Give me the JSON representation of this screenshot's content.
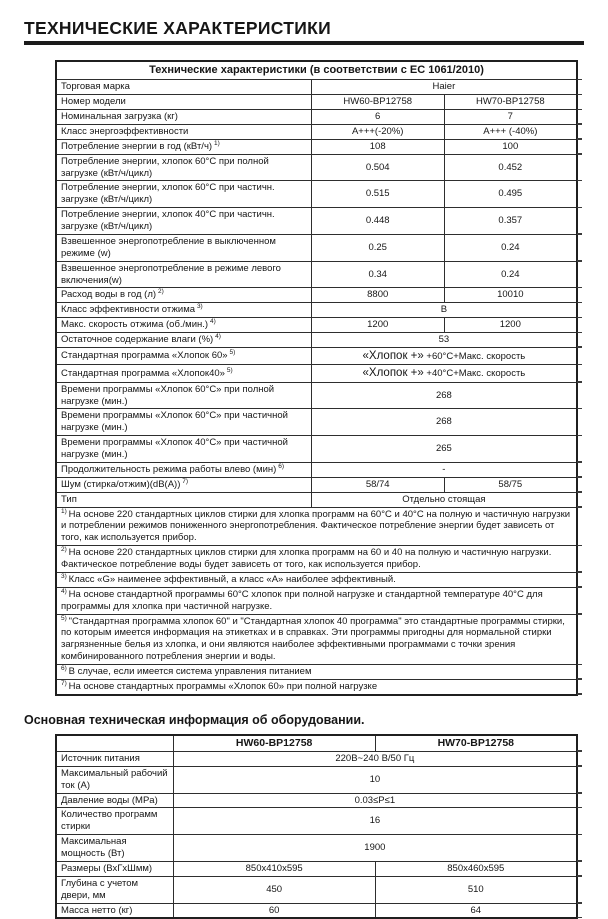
{
  "page": {
    "title": "ТЕХНИЧЕСКИЕ ХАРАКТЕРИСТИКИ",
    "section2_title": "Основная техническая информация об оборудовании."
  },
  "spec_table": {
    "title": "Технические характеристики (в соответствии с ЕС 1061/2010)",
    "rows": [
      {
        "label": "Торговая марка",
        "values": [
          "Haier"
        ]
      },
      {
        "label": "Номер модели",
        "values": [
          "HW60-BP12758",
          "HW70-BP12758"
        ]
      },
      {
        "label": "Номинальная загрузка (кг)",
        "values": [
          "6",
          "7"
        ]
      },
      {
        "label": "Класс энергоэффективности",
        "values": [
          "A+++(-20%)",
          "A+++ (-40%)"
        ]
      },
      {
        "label": "Потребление энергии в год (кВт/ч)",
        "sup": "1)",
        "values": [
          "108",
          "100"
        ]
      },
      {
        "label": "Потребление энергии, хлопок 60°C при полной загрузке (кВт/ч/цикл)",
        "values": [
          "0.504",
          "0.452"
        ]
      },
      {
        "label": "Потребление энергии, хлопок 60°C при частичн. загрузке (кВт/ч/цикл)",
        "values": [
          "0.515",
          "0.495"
        ]
      },
      {
        "label": "Потребление энергии, хлопок 40°C при частичн. загрузке (кВт/ч/цикл)",
        "values": [
          "0.448",
          "0.357"
        ]
      },
      {
        "label": "Взвешенное энергопотребление в выключенном режиме (w)",
        "values": [
          "0.25",
          "0.24"
        ]
      },
      {
        "label": "Взвешенное энергопотребление в режиме левого включения(w)",
        "values": [
          "0.34",
          "0.24"
        ]
      },
      {
        "label": "Расход воды в год (л)",
        "sup": "2)",
        "values": [
          "8800",
          "10010"
        ]
      },
      {
        "label": "Класс эффективности отжима",
        "sup": "3)",
        "values": [
          "В"
        ]
      },
      {
        "label": "Макс. скорость отжима (об./мин.)",
        "sup": "4)",
        "values": [
          "1200",
          "1200"
        ]
      },
      {
        "label": "Остаточное содержание влаги (%)",
        "sup": "4)",
        "values": [
          "53"
        ]
      },
      {
        "label": "Стандартная программа «Хлопок 60»",
        "sup": "5)",
        "value_big": "«Хлопок +»",
        "values": [
          "+60°C+Макс. скорость"
        ]
      },
      {
        "label": "Стандартная программа «Хлопок40»",
        "sup": "5)",
        "value_big": "«Хлопок +»",
        "values": [
          "+40°C+Макс. скорость"
        ]
      },
      {
        "label": "Времени программы «Хлопок 60°C» при полной нагрузке (мин.)",
        "values": [
          "268"
        ]
      },
      {
        "label": "Времени программы «Хлопок 60°C» при частичной нагрузке (мин.)",
        "values": [
          "268"
        ]
      },
      {
        "label": "Времени программы «Хлопок 40°C» при частичной нагрузке (мин.)",
        "values": [
          "265"
        ]
      },
      {
        "label": "Продолжительность режима работы влево (мин)",
        "sup": "6)",
        "values": [
          "-"
        ]
      },
      {
        "label": "Шум (стирка/отжим)(dB(A))",
        "sup": "7)",
        "values": [
          "58/74",
          "58/75"
        ]
      },
      {
        "label": "Тип",
        "values": [
          "Отдельно стоящая"
        ]
      }
    ],
    "footnotes": [
      {
        "sup": "1)",
        "text": "На основе 220 стандартных циклов стирки для хлопка программ на 60°C и 40°C на полную и частичную нагрузки и потреблении режимов пониженного энергопотребления. Фактическое потребление энергии будет зависеть от того, как используется прибор."
      },
      {
        "sup": "2)",
        "text": "На основе 220 стандартных циклов стирки для хлопка программ на 60 и 40 на полную и частичную нагрузки. Фактическое потребление воды будет зависеть от того, как используется прибор."
      },
      {
        "sup": "3)",
        "text": "Класс «G» наименее эффективный, а класс «A» наиболее эффективный."
      },
      {
        "sup": "4)",
        "text": "На основе стандартной программы 60°C хлопок при полной нагрузке и стандартной температуре 40°C для программы для хлопка при частичной нагрузке."
      },
      {
        "sup": "5)",
        "text": "\"Стандартная программа хлопок 60\" и \"Стандартная хлопок 40 программа\" это стандартные программы стирки, по которым имеется информация на этикетках и в справках. Эти программы пригодны для нормальной стирки загрязненные белья из хлопка, и они являются наиболее эффективными программами с точки зрения комбинированного потребления энергии и воды."
      },
      {
        "sup": "6)",
        "text": "В случае, если имеется система управления питанием"
      },
      {
        "sup": "7)",
        "text": "На основе стандартных программы «Хлопок 60» при полной нагрузке"
      }
    ]
  },
  "info_table": {
    "columns": [
      "",
      "HW60-BP12758",
      "HW70-BP12758"
    ],
    "rows": [
      {
        "label": "Источник питания",
        "values": [
          "220В~240 В/50 Гц"
        ]
      },
      {
        "label": "Максимальный рабочий ток (A)",
        "values": [
          "10"
        ]
      },
      {
        "label": "Давление воды (MPa)",
        "values": [
          "0.03≤P≤1"
        ]
      },
      {
        "label": "Количество программ стирки",
        "values": [
          "16"
        ]
      },
      {
        "label": "Максимальная мощность (Вт)",
        "values": [
          "1900"
        ]
      },
      {
        "label": "Размеры (ВхГхШмм)",
        "values": [
          "850x410x595",
          "850x460x595"
        ]
      },
      {
        "label": "Глубина с учетом двери, мм",
        "values": [
          "450",
          "510"
        ]
      },
      {
        "label": "Масса нетто (кг)",
        "values": [
          "60",
          "64"
        ]
      }
    ]
  }
}
